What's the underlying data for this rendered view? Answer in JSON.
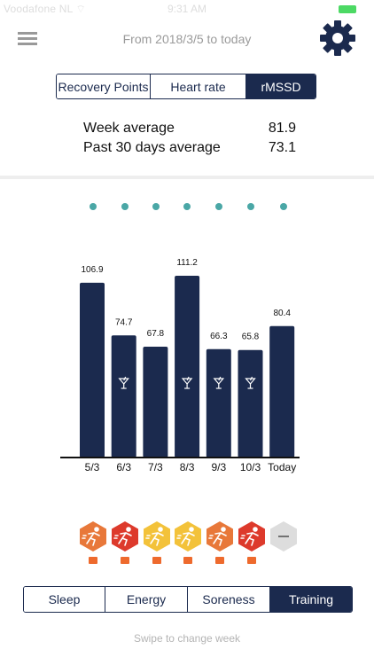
{
  "status_bar": {
    "carrier": "Voodafone NL  ⌔",
    "time": "9:31 AM"
  },
  "header": {
    "date_range": "From 2018/3/5 to today"
  },
  "metric_tabs": [
    {
      "label": "Recovery Points",
      "active": false
    },
    {
      "label": "Heart rate",
      "active": false
    },
    {
      "label": "rMSSD",
      "active": true
    }
  ],
  "stats": {
    "week_label": "Week average",
    "week_value": "81.9",
    "month_label": "Past 30 days average",
    "month_value": "73.1"
  },
  "colors": {
    "bar": "#1b2a4e",
    "dot": "#4aa7a6",
    "badge_orange": "#e8783a",
    "badge_red": "#dd3a2c",
    "badge_yellow": "#f3c23a",
    "badge_grey": "#dddddd"
  },
  "chart_data": {
    "type": "bar",
    "categories": [
      "5/3",
      "6/3",
      "7/3",
      "8/3",
      "9/3",
      "10/3",
      "Today"
    ],
    "values": [
      106.9,
      74.7,
      67.8,
      111.2,
      66.3,
      65.8,
      80.4
    ],
    "value_labels": [
      "106.9",
      "74.7",
      "67.8",
      "111.2",
      "66.3",
      "65.8",
      "80.4"
    ],
    "alcohol_marker": [
      false,
      true,
      false,
      true,
      true,
      true,
      false
    ],
    "marker_icon": "cocktail-glass-icon",
    "ylim": [
      0,
      111.2
    ]
  },
  "training_badges": [
    {
      "color": "orange",
      "icon": "running-person-icon",
      "mark": "A"
    },
    {
      "color": "red",
      "icon": "running-person-icon",
      "mark": "A"
    },
    {
      "color": "yellow",
      "icon": "running-person-icon",
      "mark": "A"
    },
    {
      "color": "yellow",
      "icon": "running-person-icon",
      "mark": "A"
    },
    {
      "color": "orange",
      "icon": "running-person-icon",
      "mark": "A"
    },
    {
      "color": "red",
      "icon": "running-person-icon",
      "mark": "A"
    },
    {
      "color": "grey",
      "icon": "dash-icon",
      "mark": ""
    }
  ],
  "category_tabs": [
    {
      "label": "Sleep",
      "active": false
    },
    {
      "label": "Energy",
      "active": false
    },
    {
      "label": "Soreness",
      "active": false
    },
    {
      "label": "Training",
      "active": true
    }
  ],
  "footer": {
    "swipe_hint": "Swipe to change week"
  }
}
